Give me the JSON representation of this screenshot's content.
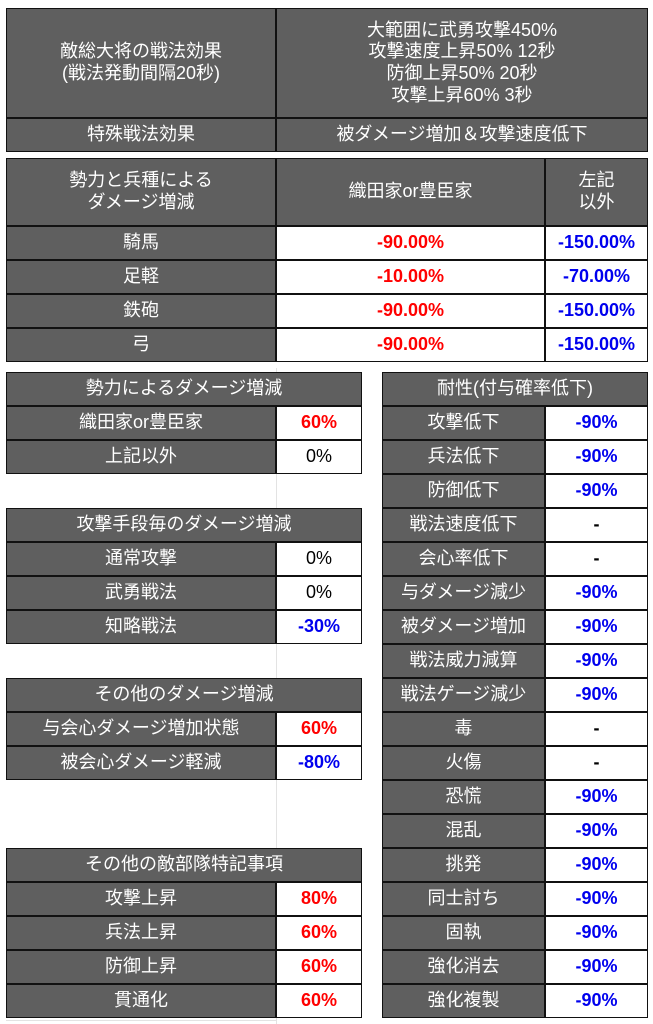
{
  "colors": {
    "header_bg": "#5f5f5f",
    "positive": "#ff0000",
    "negative": "#0000ee",
    "neutral": "#000000"
  },
  "top": {
    "rows": [
      {
        "label": "敵総大将の戦法効果\n(戦法発動間隔20秒)",
        "value": "大範囲に武勇攻撃450%\n攻撃速度上昇50% 12秒\n防御上昇50% 20秒\n攻撃上昇60% 3秒"
      },
      {
        "label": "特殊戦法効果",
        "value": "被ダメージ増加＆攻撃速度低下"
      }
    ]
  },
  "faction_unit": {
    "header": {
      "label": "勢力と兵種による\nダメージ増減",
      "col1": "織田家or豊臣家",
      "col2": "左記\n以外"
    },
    "rows": [
      {
        "label": "騎馬",
        "col1": "-90.00%",
        "col2": "-150.00%"
      },
      {
        "label": "足軽",
        "col1": "-10.00%",
        "col2": "-70.00%"
      },
      {
        "label": "鉄砲",
        "col1": "-90.00%",
        "col2": "-150.00%"
      },
      {
        "label": "弓",
        "col1": "-90.00%",
        "col2": "-150.00%"
      }
    ]
  },
  "left_tables": [
    {
      "title": "勢力によるダメージ増減",
      "start_row": 0,
      "rows": [
        {
          "label": "織田家or豊臣家",
          "value": "60%",
          "tone": "red"
        },
        {
          "label": "上記以外",
          "value": "0%",
          "tone": "black"
        }
      ]
    },
    {
      "title": "攻撃手段毎のダメージ増減",
      "start_row": 4,
      "rows": [
        {
          "label": "通常攻撃",
          "value": "0%",
          "tone": "black"
        },
        {
          "label": "武勇戦法",
          "value": "0%",
          "tone": "black"
        },
        {
          "label": "知略戦法",
          "value": "-30%",
          "tone": "blue"
        }
      ]
    },
    {
      "title": "その他のダメージ増減",
      "start_row": 9,
      "rows": [
        {
          "label": "与会心ダメージ増加状態",
          "value": "60%",
          "tone": "red"
        },
        {
          "label": "被会心ダメージ軽減",
          "value": "-80%",
          "tone": "blue"
        }
      ]
    },
    {
      "title": "その他の敵部隊特記事項",
      "start_row": 14,
      "rows": [
        {
          "label": "攻撃上昇",
          "value": "80%",
          "tone": "red"
        },
        {
          "label": "兵法上昇",
          "value": "60%",
          "tone": "red"
        },
        {
          "label": "防御上昇",
          "value": "60%",
          "tone": "red"
        },
        {
          "label": "貫通化",
          "value": "60%",
          "tone": "red"
        }
      ]
    }
  ],
  "resistance": {
    "title": "耐性(付与確率低下)",
    "rows": [
      {
        "label": "攻撃低下",
        "value": "-90%",
        "tone": "blue"
      },
      {
        "label": "兵法低下",
        "value": "-90%",
        "tone": "blue"
      },
      {
        "label": "防御低下",
        "value": "-90%",
        "tone": "blue"
      },
      {
        "label": "戦法速度低下",
        "value": "-",
        "tone": "black"
      },
      {
        "label": "会心率低下",
        "value": "-",
        "tone": "black"
      },
      {
        "label": "与ダメージ減少",
        "value": "-90%",
        "tone": "blue"
      },
      {
        "label": "被ダメージ増加",
        "value": "-90%",
        "tone": "blue"
      },
      {
        "label": "戦法威力減算",
        "value": "-90%",
        "tone": "blue"
      },
      {
        "label": "戦法ゲージ減少",
        "value": "-90%",
        "tone": "blue"
      },
      {
        "label": "毒",
        "value": "-",
        "tone": "black"
      },
      {
        "label": "火傷",
        "value": "-",
        "tone": "black"
      },
      {
        "label": "恐慌",
        "value": "-90%",
        "tone": "blue"
      },
      {
        "label": "混乱",
        "value": "-90%",
        "tone": "blue"
      },
      {
        "label": "挑発",
        "value": "-90%",
        "tone": "blue"
      },
      {
        "label": "同士討ち",
        "value": "-90%",
        "tone": "blue"
      },
      {
        "label": "固執",
        "value": "-90%",
        "tone": "blue"
      },
      {
        "label": "強化消去",
        "value": "-90%",
        "tone": "blue"
      },
      {
        "label": "強化複製",
        "value": "-90%",
        "tone": "blue"
      }
    ]
  }
}
